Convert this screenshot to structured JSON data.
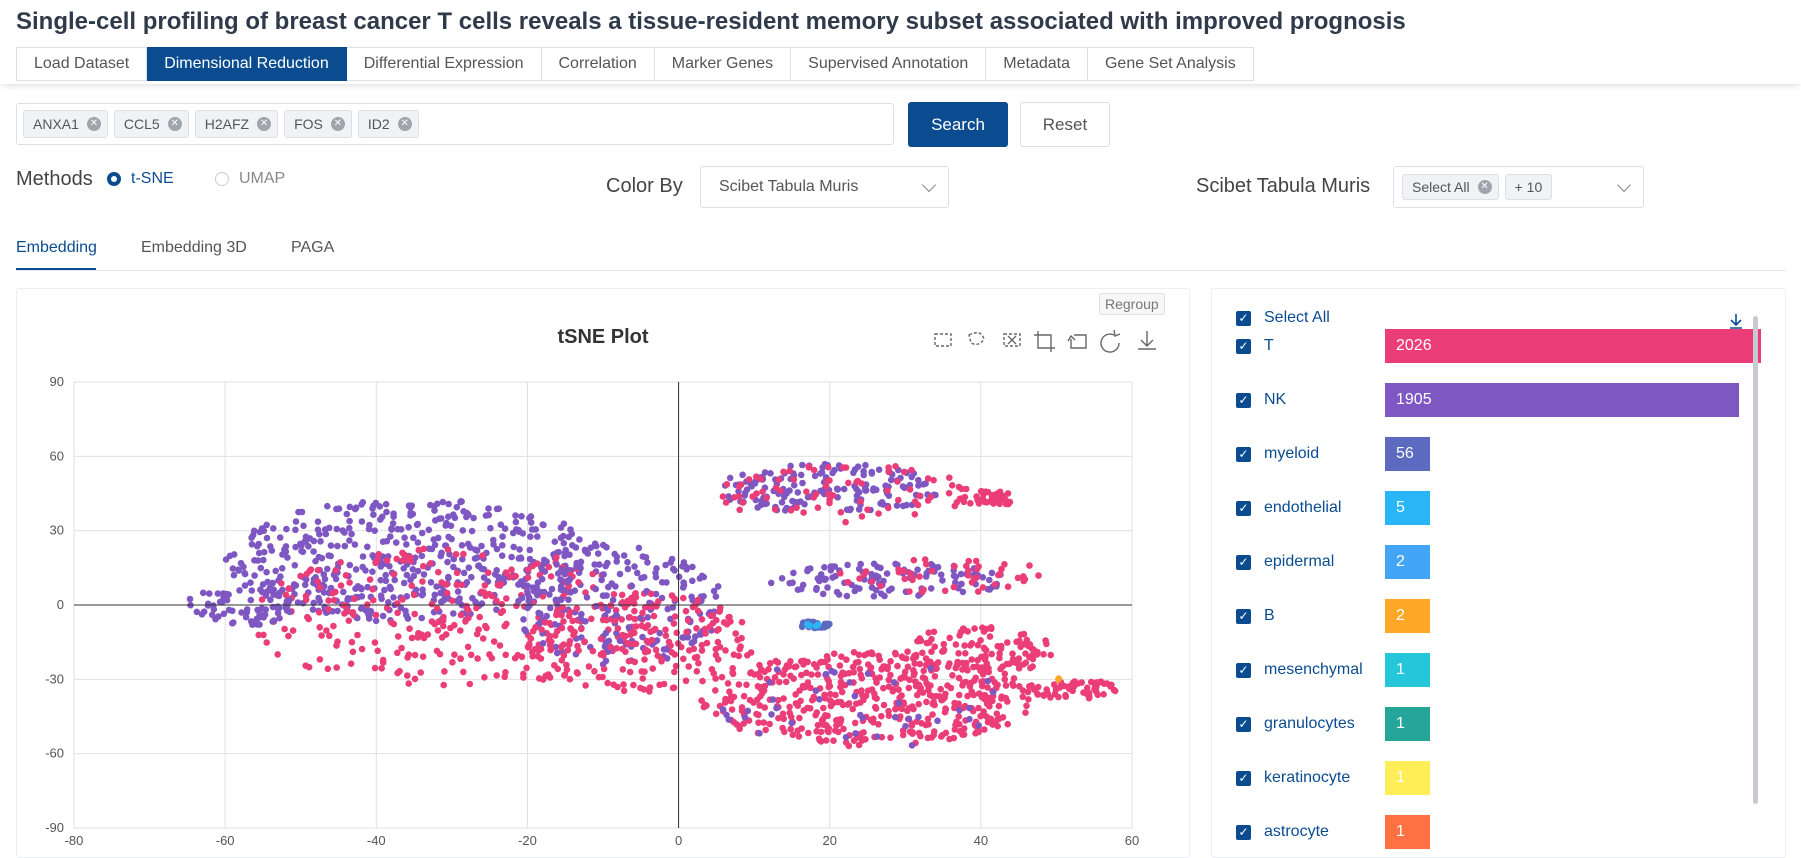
{
  "title": "Single-cell profiling of breast cancer T cells reveals a tissue-resident memory subset associated with improved prognosis",
  "tabs": [
    "Load Dataset",
    "Dimensional Reduction",
    "Differential Expression",
    "Correlation",
    "Marker Genes",
    "Supervised Annotation",
    "Metadata",
    "Gene Set Analysis"
  ],
  "active_tab": "Dimensional Reduction",
  "genes": [
    "ANXA1",
    "CCL5",
    "H2AFZ",
    "FOS",
    "ID2"
  ],
  "buttons": {
    "search": "Search",
    "reset": "Reset"
  },
  "methods": {
    "label": "Methods",
    "options": [
      "t-SNE",
      "UMAP"
    ],
    "selected": "t-SNE"
  },
  "color_by": {
    "label": "Color By",
    "value": "Scibet Tabula Muris"
  },
  "filter": {
    "label": "Scibet Tabula Muris",
    "chip": "Select All",
    "more": "+ 10"
  },
  "subtabs": [
    "Embedding",
    "Embedding 3D",
    "PAGA"
  ],
  "regroup": "Regroup",
  "legend": {
    "select_all": "Select All",
    "items": [
      {
        "name": "T",
        "count": 2026,
        "color": "#eb3d78"
      },
      {
        "name": "NK",
        "count": 1905,
        "color": "#7e57c2"
      },
      {
        "name": "myeloid",
        "count": 56,
        "color": "#5c6bc0"
      },
      {
        "name": "endothelial",
        "count": 5,
        "color": "#29b6f6"
      },
      {
        "name": "epidermal",
        "count": 2,
        "color": "#42a5f5"
      },
      {
        "name": "B",
        "count": 2,
        "color": "#ffa726"
      },
      {
        "name": "mesenchymal",
        "count": 1,
        "color": "#26c6da"
      },
      {
        "name": "granulocytes",
        "count": 1,
        "color": "#26a69a"
      },
      {
        "name": "keratinocyte",
        "count": 1,
        "color": "#ffee58"
      },
      {
        "name": "astrocyte",
        "count": 1,
        "color": "#ff7043"
      }
    ]
  },
  "chart_data": {
    "type": "scatter",
    "title": "tSNE Plot",
    "xlim": [
      -80,
      60
    ],
    "ylim": [
      -90,
      90
    ],
    "x_ticks": [
      -80,
      -60,
      -40,
      -20,
      0,
      20,
      40,
      60
    ],
    "y_ticks": [
      -90,
      -60,
      -30,
      0,
      30,
      60,
      90
    ],
    "grid": true,
    "series": [
      {
        "name": "T",
        "color": "#eb3d78"
      },
      {
        "name": "NK",
        "color": "#7e57c2"
      },
      {
        "name": "myeloid",
        "color": "#5c6bc0"
      },
      {
        "name": "endothelial",
        "color": "#29b6f6"
      },
      {
        "name": "B",
        "color": "#ffa726"
      }
    ],
    "clusters": [
      {
        "series": "NK",
        "cx": -35,
        "cy": 18,
        "rx": 25,
        "ry": 25,
        "n": 520
      },
      {
        "series": "T",
        "cx": -30,
        "cy": -5,
        "rx": 28,
        "ry": 28,
        "n": 300
      },
      {
        "series": "NK",
        "cx": -8,
        "cy": 0,
        "rx": 14,
        "ry": 25,
        "n": 200
      },
      {
        "series": "T",
        "cx": -5,
        "cy": -15,
        "rx": 15,
        "ry": 20,
        "n": 200
      },
      {
        "series": "NK",
        "cx": -58,
        "cy": 0,
        "rx": 7,
        "ry": 9,
        "n": 70
      },
      {
        "series": "NK",
        "cx": 20,
        "cy": 47,
        "rx": 15,
        "ry": 10,
        "n": 160
      },
      {
        "series": "T",
        "cx": 22,
        "cy": 45,
        "rx": 17,
        "ry": 12,
        "n": 80
      },
      {
        "series": "T",
        "cx": 41,
        "cy": 43,
        "rx": 4,
        "ry": 3,
        "n": 40
      },
      {
        "series": "NK",
        "cx": 28,
        "cy": 10,
        "rx": 16,
        "ry": 7,
        "n": 110
      },
      {
        "series": "T",
        "cx": 35,
        "cy": 12,
        "rx": 14,
        "ry": 7,
        "n": 50
      },
      {
        "series": "T",
        "cx": 25,
        "cy": -38,
        "rx": 22,
        "ry": 19,
        "n": 500
      },
      {
        "series": "T",
        "cx": 40,
        "cy": -18,
        "rx": 10,
        "ry": 10,
        "n": 110
      },
      {
        "series": "T",
        "cx": 52,
        "cy": -34,
        "rx": 6,
        "ry": 4,
        "n": 60
      },
      {
        "series": "NK",
        "cx": 25,
        "cy": -40,
        "rx": 20,
        "ry": 18,
        "n": 40
      },
      {
        "series": "myeloid",
        "cx": 18,
        "cy": -8,
        "rx": 2,
        "ry": 1.5,
        "n": 40
      },
      {
        "series": "endothelial",
        "cx": 18,
        "cy": -8,
        "rx": 1,
        "ry": 1,
        "n": 5
      },
      {
        "series": "B",
        "cx": 50,
        "cy": -30,
        "rx": 0.5,
        "ry": 0.5,
        "n": 2
      }
    ]
  }
}
